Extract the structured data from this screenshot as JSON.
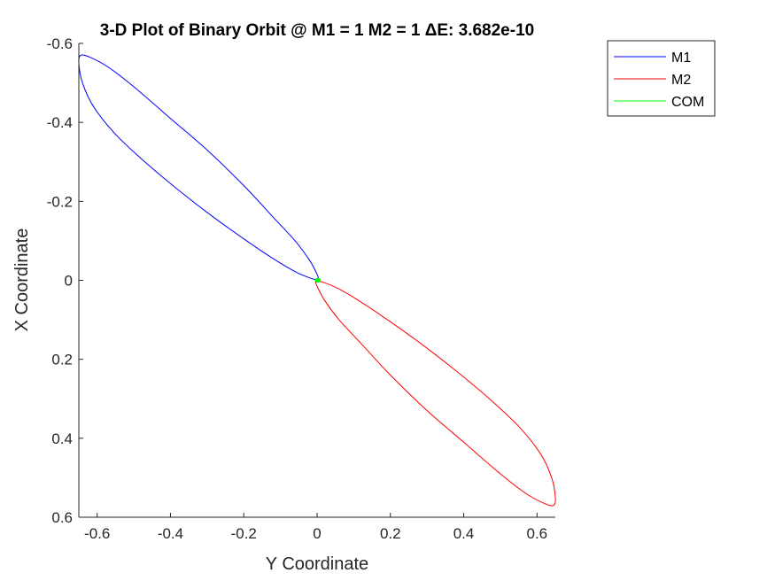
{
  "chart_data": {
    "type": "line",
    "title": "3-D Plot of Binary Orbit @ M1 = 1 M2 = 1 ΔE: 3.682e-10",
    "xlabel": "Y Coordinate",
    "ylabel": "X Coordinate",
    "xlim": [
      -0.65,
      0.65
    ],
    "ylim": [
      -0.6,
      0.6
    ],
    "y_reversed": true,
    "xticks": [
      -0.6,
      -0.4,
      -0.2,
      0,
      0.2,
      0.4,
      0.6
    ],
    "xtick_labels": [
      "-0.6",
      "-0.4",
      "-0.2",
      "0",
      "0.2",
      "0.4",
      "0.6"
    ],
    "yticks": [
      -0.6,
      -0.4,
      -0.2,
      0,
      0.2,
      0.4,
      0.6
    ],
    "ytick_labels": [
      "-0.6",
      "-0.4",
      "-0.2",
      "0",
      "0.2",
      "0.4",
      "0.6"
    ],
    "grid": false,
    "legend_position": "top-right",
    "series": [
      {
        "name": "M1",
        "color": "#0000ff",
        "x": [
          0.005,
          0.0,
          -0.02,
          -0.06,
          -0.12,
          -0.2,
          -0.3,
          -0.4,
          -0.5,
          -0.57,
          -0.62,
          -0.645,
          -0.65,
          -0.64,
          -0.61,
          -0.55,
          -0.47,
          -0.38,
          -0.29,
          -0.2,
          -0.12,
          -0.06,
          -0.02,
          0.0,
          0.005
        ],
        "y": [
          0.0,
          -0.015,
          -0.05,
          -0.1,
          -0.16,
          -0.24,
          -0.33,
          -0.41,
          -0.49,
          -0.54,
          -0.565,
          -0.57,
          -0.55,
          -0.5,
          -0.44,
          -0.37,
          -0.3,
          -0.23,
          -0.165,
          -0.105,
          -0.055,
          -0.022,
          -0.006,
          -0.001,
          0.0
        ]
      },
      {
        "name": "M2",
        "color": "#ff0000",
        "x": [
          -0.005,
          0.0,
          0.02,
          0.06,
          0.12,
          0.2,
          0.3,
          0.4,
          0.5,
          0.57,
          0.62,
          0.645,
          0.65,
          0.64,
          0.61,
          0.55,
          0.47,
          0.38,
          0.29,
          0.2,
          0.12,
          0.06,
          0.02,
          0.0,
          -0.005
        ],
        "y": [
          0.0,
          0.015,
          0.05,
          0.1,
          0.16,
          0.24,
          0.33,
          0.41,
          0.49,
          0.54,
          0.565,
          0.57,
          0.55,
          0.5,
          0.44,
          0.37,
          0.3,
          0.23,
          0.165,
          0.105,
          0.055,
          0.022,
          0.006,
          0.001,
          0.0
        ]
      },
      {
        "name": "COM",
        "color": "#00ff00",
        "x": [
          0.0,
          0.004
        ],
        "y": [
          0.0,
          0.0
        ]
      }
    ]
  }
}
